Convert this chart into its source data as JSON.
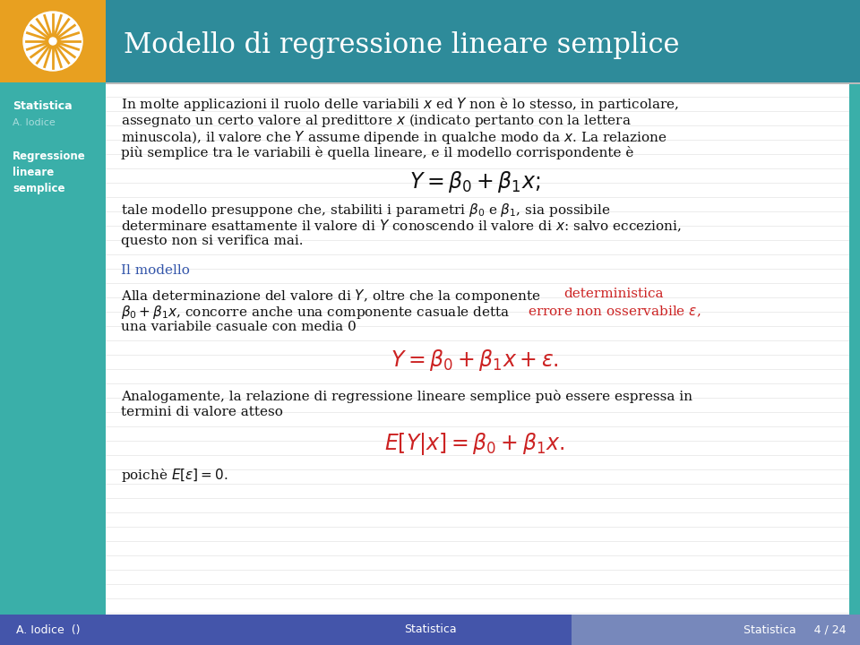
{
  "title": "Modello di regressione lineare semplice",
  "header_bg": "#2E8B9A",
  "orange_bg": "#E8A020",
  "sidebar_bg": "#3AAFA9",
  "footer_bg": "#4455AA",
  "footer_bg2": "#7788BB",
  "footer_left": "A. Iodice  ()",
  "footer_center": "Statistica",
  "footer_right": "Statistica     4 / 24",
  "sidebar_title": "Statistica",
  "sidebar_author": "A. Iodice",
  "white_bg": "#FFFFFF",
  "body_text_color": "#111111",
  "teal_color": "#3AAFA9",
  "blue_heading": "#3355AA",
  "red_color": "#CC2222",
  "orange_color": "#E8A020",
  "grid_color": "#DDDDDD",
  "right_bar_color": "#3AAFA9"
}
